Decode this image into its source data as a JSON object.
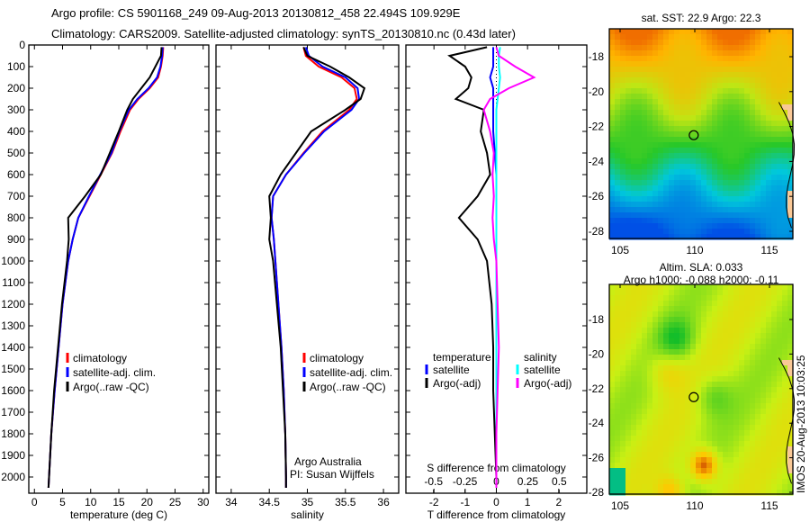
{
  "title_line1": "Argo profile: CS 5901168_249 09-Aug-2013 20130812_458 22.494S 109.929E",
  "title_line2": "Climatology: CARS2009. Satellite-adjusted climatology: synTS_20130810.nc (0.43d later)",
  "colors": {
    "climatology": "#ff0000",
    "satellite": "#0000ff",
    "argo": "#000000",
    "sal_sat": "#00ffff",
    "sal_argo": "#ff00ff"
  },
  "chart_data": [
    {
      "type": "line",
      "title": "",
      "xlabel": "temperature (deg C)",
      "ylabel": "",
      "xlim": [
        -1,
        31
      ],
      "ylim": [
        2075,
        0
      ],
      "xticks": [
        0,
        5,
        10,
        15,
        20,
        25,
        30
      ],
      "yticks": [
        0,
        100,
        200,
        300,
        400,
        500,
        600,
        700,
        800,
        900,
        1000,
        1100,
        1200,
        1300,
        1400,
        1500,
        1600,
        1700,
        1800,
        1900,
        2000
      ],
      "legend": [
        "climatology",
        "satellite-adj. clim.",
        "Argo(..raw -QC)"
      ],
      "depth": [
        10,
        50,
        100,
        150,
        200,
        250,
        300,
        400,
        500,
        600,
        700,
        800,
        900,
        1000,
        1200,
        1400,
        1600,
        1800,
        2000,
        2050
      ],
      "series": [
        {
          "name": "climatology",
          "values": [
            22.9,
            22.8,
            22.5,
            22.0,
            20.5,
            18.5,
            17.0,
            15.3,
            13.8,
            11.8,
            9.8,
            7.8,
            6.8,
            6.0,
            5.0,
            4.3,
            3.6,
            3.0,
            2.6,
            2.5
          ]
        },
        {
          "name": "satellite-adj. clim.",
          "values": [
            22.8,
            22.7,
            22.4,
            21.8,
            20.3,
            18.3,
            16.8,
            15.1,
            13.7,
            11.7,
            9.7,
            7.8,
            6.8,
            6.0,
            5.0,
            4.3,
            3.6,
            3.0,
            2.6,
            2.5
          ]
        },
        {
          "name": "Argo(..raw -QC)",
          "values": [
            22.6,
            22.5,
            21.5,
            20.5,
            19.0,
            17.5,
            16.5,
            15.0,
            13.4,
            11.8,
            9.0,
            6.0,
            6.1,
            5.8,
            4.9,
            4.2,
            3.5,
            3.0,
            2.6,
            2.5
          ]
        }
      ]
    },
    {
      "type": "line",
      "title": "",
      "xlabel": "salinity",
      "ylabel": "",
      "xlim": [
        33.8,
        36.2
      ],
      "ylim": [
        2075,
        0
      ],
      "xticks": [
        34,
        34.5,
        35,
        35.5,
        36
      ],
      "legend": [
        "climatology",
        "satellite-adj. clim.",
        "Argo(..raw -QC)"
      ],
      "annotations": [
        "Argo Australia",
        "PI: Susan Wijffels"
      ],
      "depth": [
        10,
        50,
        100,
        150,
        200,
        250,
        300,
        400,
        500,
        600,
        700,
        800,
        900,
        1000,
        1200,
        1400,
        1600,
        1800,
        2000,
        2050
      ],
      "series": [
        {
          "name": "climatology",
          "values": [
            34.95,
            34.98,
            35.15,
            35.45,
            35.62,
            35.65,
            35.55,
            35.2,
            34.95,
            34.72,
            34.55,
            34.53,
            34.56,
            34.58,
            34.62,
            34.66,
            34.69,
            34.71,
            34.72,
            34.72
          ]
        },
        {
          "name": "satellite-adj. clim.",
          "values": [
            34.98,
            35.02,
            35.2,
            35.5,
            35.66,
            35.68,
            35.58,
            35.22,
            34.96,
            34.72,
            34.55,
            34.53,
            34.56,
            34.58,
            34.62,
            34.66,
            34.69,
            34.71,
            34.72,
            34.72
          ]
        },
        {
          "name": "Argo(..raw -QC)",
          "values": [
            34.95,
            35.0,
            35.3,
            35.55,
            35.75,
            35.7,
            35.5,
            35.05,
            34.85,
            34.65,
            34.5,
            34.52,
            34.5,
            34.55,
            34.6,
            34.65,
            34.68,
            34.71,
            34.72,
            34.72
          ]
        }
      ]
    },
    {
      "type": "line",
      "title": "",
      "xlabel": "T difference from climatology",
      "x2label": "S difference from climatology",
      "xlim": [
        -2.9,
        2.9
      ],
      "x2lim": [
        -0.72,
        0.72
      ],
      "ylim": [
        2075,
        0
      ],
      "xticks": [
        -2,
        -1,
        0,
        1,
        2
      ],
      "x2ticks": [
        -0.5,
        -0.25,
        0,
        0.25,
        0.5
      ],
      "legend": {
        "temperature": "temperature",
        "salinity": "salinity",
        "t_sat": "satellite",
        "t_argo": "Argo(-adj)",
        "s_sat": "satellite",
        "s_argo": "Argo(-adj)"
      },
      "depth": [
        10,
        50,
        100,
        150,
        200,
        250,
        300,
        400,
        500,
        600,
        700,
        800,
        900,
        1000,
        1200,
        1400,
        1600,
        1800,
        2000,
        2050
      ],
      "series": [
        {
          "name": "T satellite",
          "axis": "T",
          "values": [
            -0.1,
            -0.1,
            -0.1,
            -0.2,
            -0.1,
            -0.1,
            -0.1,
            -0.1,
            -0.05,
            0,
            0,
            0,
            0,
            0,
            0,
            0,
            0,
            0,
            0,
            0
          ]
        },
        {
          "name": "T Argo(-adj)",
          "axis": "T",
          "values": [
            -0.3,
            -1.5,
            -1.0,
            -0.8,
            -0.9,
            -1.3,
            -0.4,
            -0.5,
            -0.3,
            -0.2,
            -0.6,
            -1.2,
            -0.6,
            -0.3,
            -0.15,
            -0.1,
            -0.1,
            -0.05,
            0,
            0
          ]
        },
        {
          "name": "S satellite",
          "axis": "S",
          "values": [
            0.03,
            0.02,
            0.02,
            0.03,
            0.02,
            0.01,
            0.0,
            0.0,
            0.0,
            0.0,
            0.0,
            0.0,
            0.0,
            0.0,
            0.0,
            0.0,
            0.0,
            0.0,
            0.0,
            0.0
          ]
        },
        {
          "name": "S Argo(-adj)",
          "axis": "S",
          "values": [
            0.0,
            0.02,
            0.15,
            0.3,
            0.1,
            -0.05,
            -0.1,
            -0.05,
            -0.02,
            -0.03,
            -0.02,
            -0.03,
            -0.02,
            0.0,
            0.01,
            0.02,
            0.01,
            0.0,
            0.0,
            0.0
          ]
        }
      ]
    }
  ],
  "map_sst": {
    "title": "sat. SST: 22.9 Argo: 22.3",
    "lat_ticks": [
      "-18",
      "-20",
      "-22",
      "-24",
      "-26",
      "-28"
    ],
    "lon_ticks": [
      "105",
      "110",
      "115"
    ]
  },
  "map_sla": {
    "title1": "Altim. SLA: 0.033",
    "title2": "Argo h1000: -0.088 h2000: -0.11",
    "lat_ticks": [
      "-18",
      "-20",
      "-22",
      "-24",
      "-26",
      "-28"
    ],
    "lon_ticks": [
      "105",
      "110",
      "115"
    ]
  },
  "credit": "IMOS 20-Aug-2013 10:03:25",
  "argo_position": {
    "lat": -22.494,
    "lon": 109.929
  }
}
